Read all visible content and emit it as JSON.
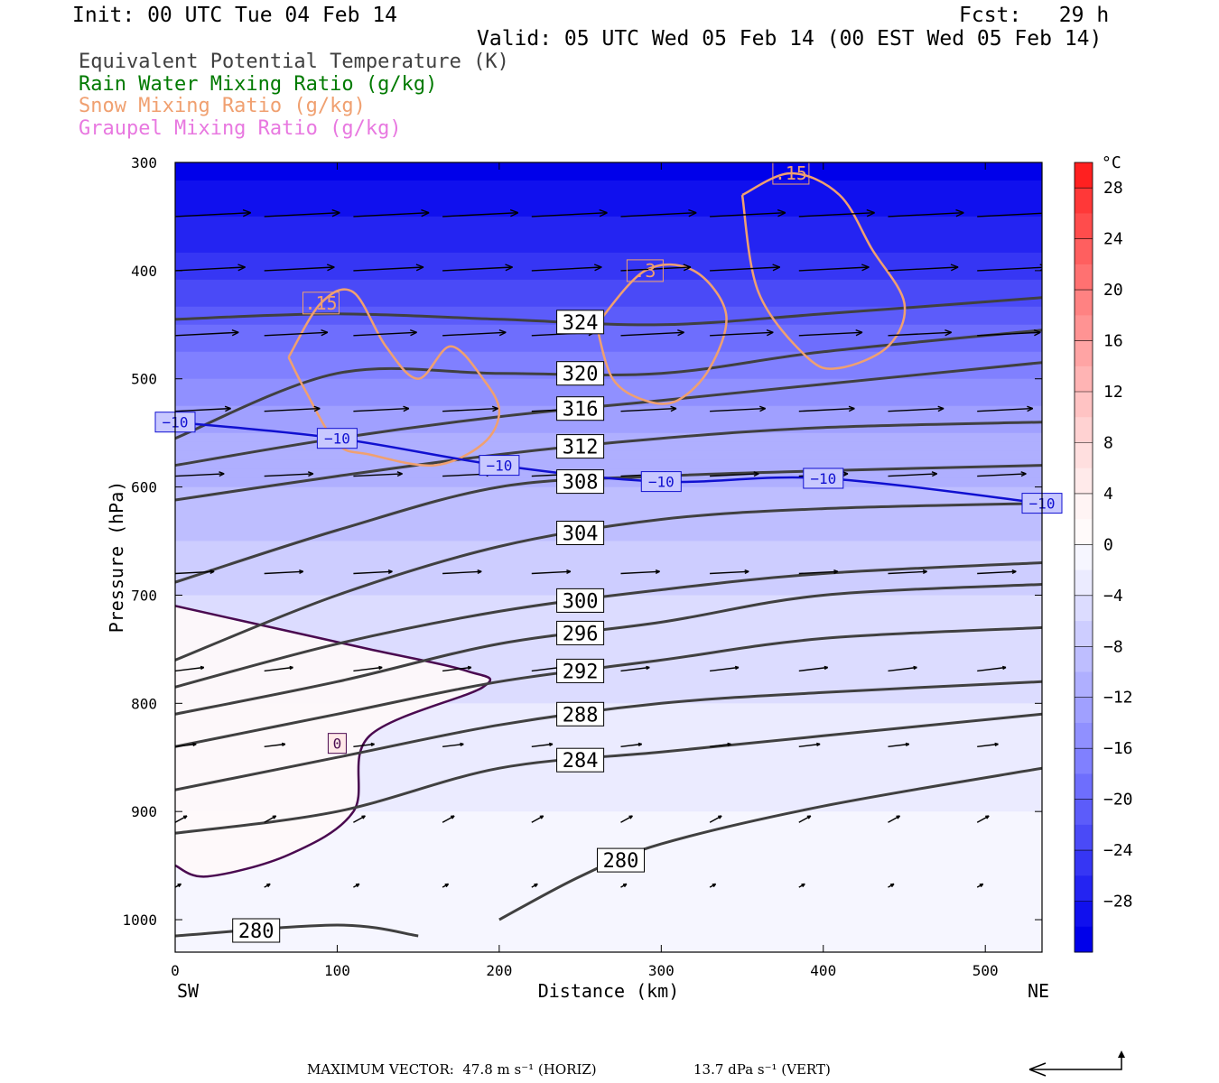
{
  "header": {
    "init": "Init: 00 UTC Tue 04 Feb 14",
    "fcst": "Fcst:   29 h",
    "valid": "Valid: 05 UTC Wed 05 Feb 14 (00 EST Wed 05 Feb 14)"
  },
  "fields": [
    {
      "label": "Equivalent Potential Temperature (K)",
      "color": "#404040"
    },
    {
      "label": "Rain Water Mixing Ratio (g/kg)",
      "color": "#007a00"
    },
    {
      "label": "Snow Mixing Ratio (g/kg)",
      "color": "#f0a070"
    },
    {
      "label": "Graupel Mixing Ratio (g/kg)",
      "color": "#e878e0"
    }
  ],
  "footer": {
    "horiz": "MAXIMUM VECTOR:  47.8 m s⁻¹ (HORIZ)",
    "vert": "13.7 dPa s⁻¹ (VERT)"
  },
  "chart_data": {
    "type": "heatmap",
    "xlabel": "Distance (km)",
    "ylabel": "Pressure (hPa)",
    "xlim": [
      0,
      535
    ],
    "ylim": [
      1030,
      300
    ],
    "x_ticks": [
      "0",
      "100",
      "200",
      "300",
      "400",
      "500"
    ],
    "y_ticks": [
      "300",
      "400",
      "500",
      "600",
      "700",
      "800",
      "900",
      "1000"
    ],
    "left_end_label": "SW",
    "right_end_label": "NE",
    "colorbar": {
      "unit": "°C",
      "tick_labels": [
        "28",
        "24",
        "20",
        "16",
        "12",
        "8",
        "4",
        "0",
        "−4",
        "−8",
        "−12",
        "−16",
        "−20",
        "−24",
        "−28"
      ],
      "bins": [
        {
          "from": 30,
          "to": 28,
          "color": "#ff2020"
        },
        {
          "from": 28,
          "to": 26,
          "color": "#ff3838"
        },
        {
          "from": 26,
          "to": 24,
          "color": "#ff4c4c"
        },
        {
          "from": 24,
          "to": 22,
          "color": "#ff5f5f"
        },
        {
          "from": 22,
          "to": 20,
          "color": "#ff7171"
        },
        {
          "from": 20,
          "to": 18,
          "color": "#ff8282"
        },
        {
          "from": 18,
          "to": 16,
          "color": "#ff9393"
        },
        {
          "from": 16,
          "to": 14,
          "color": "#ffa4a4"
        },
        {
          "from": 14,
          "to": 12,
          "color": "#ffb4b4"
        },
        {
          "from": 12,
          "to": 10,
          "color": "#ffc3c3"
        },
        {
          "from": 10,
          "to": 8,
          "color": "#ffd2d2"
        },
        {
          "from": 8,
          "to": 6,
          "color": "#ffdfdf"
        },
        {
          "from": 6,
          "to": 4,
          "color": "#ffeaea"
        },
        {
          "from": 4,
          "to": 2,
          "color": "#fff4f4"
        },
        {
          "from": 2,
          "to": 0,
          "color": "#fffafa"
        },
        {
          "from": 0,
          "to": -2,
          "color": "#f6f6ff"
        },
        {
          "from": -2,
          "to": -4,
          "color": "#ebebff"
        },
        {
          "from": -4,
          "to": -6,
          "color": "#dcdcff"
        },
        {
          "from": -6,
          "to": -8,
          "color": "#cdcdff"
        },
        {
          "from": -8,
          "to": -10,
          "color": "#bebeff"
        },
        {
          "from": -10,
          "to": -12,
          "color": "#afafff"
        },
        {
          "from": -12,
          "to": -14,
          "color": "#a0a0ff"
        },
        {
          "from": -14,
          "to": -16,
          "color": "#9090ff"
        },
        {
          "from": -16,
          "to": -18,
          "color": "#8080ff"
        },
        {
          "from": -18,
          "to": -20,
          "color": "#6e6efd"
        },
        {
          "from": -20,
          "to": -22,
          "color": "#5c5cfa"
        },
        {
          "from": -22,
          "to": -24,
          "color": "#4a4af7"
        },
        {
          "from": -24,
          "to": -26,
          "color": "#3636f4"
        },
        {
          "from": -26,
          "to": -28,
          "color": "#2424f2"
        },
        {
          "from": -28,
          "to": -30,
          "color": "#1010ee"
        },
        {
          "from": -30,
          "to": -32,
          "color": "#0000ea"
        }
      ]
    },
    "temperature_levels": [
      {
        "p": 300,
        "t": -31
      },
      {
        "p": 350,
        "t": -28
      },
      {
        "p": 400,
        "t": -25
      },
      {
        "p": 450,
        "t": -20
      },
      {
        "p": 500,
        "t": -16
      },
      {
        "p": 550,
        "t": -12
      },
      {
        "p": 600,
        "t": -10
      },
      {
        "p": 650,
        "t": -8
      },
      {
        "p": 700,
        "t": -6
      },
      {
        "p": 750,
        "t": -5
      },
      {
        "p": 800,
        "t": -4
      },
      {
        "p": 850,
        "t": -3
      },
      {
        "p": 900,
        "t": -2
      },
      {
        "p": 950,
        "t": -1
      },
      {
        "p": 1000,
        "t": -1
      },
      {
        "p": 1030,
        "t": -1
      }
    ],
    "warm_pocket": {
      "label": "0",
      "temperature": 2
    },
    "theta_e_contours": [
      {
        "label": "324",
        "x": [
          0,
          100,
          200,
          300,
          400,
          535
        ],
        "y": [
          445,
          440,
          445,
          450,
          440,
          425
        ]
      },
      {
        "label": "320",
        "x": [
          0,
          100,
          200,
          300,
          400,
          535
        ],
        "y": [
          555,
          495,
          495,
          495,
          475,
          455
        ]
      },
      {
        "label": "316",
        "x": [
          0,
          100,
          200,
          300,
          400,
          535
        ],
        "y": [
          580,
          555,
          535,
          520,
          505,
          485
        ]
      },
      {
        "label": "312",
        "x": [
          0,
          100,
          200,
          300,
          400,
          535
        ],
        "y": [
          612,
          590,
          570,
          555,
          545,
          540
        ]
      },
      {
        "label": "308",
        "x": [
          0,
          100,
          200,
          300,
          400,
          535
        ],
        "y": [
          688,
          640,
          600,
          590,
          585,
          580
        ]
      },
      {
        "label": "304",
        "x": [
          0,
          100,
          200,
          300,
          400,
          535
        ],
        "y": [
          760,
          700,
          655,
          630,
          620,
          615
        ]
      },
      {
        "label": "300",
        "x": [
          0,
          100,
          200,
          300,
          400,
          535
        ],
        "y": [
          785,
          745,
          715,
          695,
          680,
          670
        ]
      },
      {
        "label": "296",
        "x": [
          0,
          100,
          200,
          300,
          400,
          535
        ],
        "y": [
          810,
          780,
          745,
          725,
          700,
          690
        ]
      },
      {
        "label": "292",
        "x": [
          0,
          100,
          200,
          300,
          400,
          535
        ],
        "y": [
          840,
          810,
          780,
          760,
          740,
          730
        ]
      },
      {
        "label": "288",
        "x": [
          0,
          100,
          200,
          300,
          400,
          535
        ],
        "y": [
          880,
          850,
          820,
          800,
          790,
          780
        ]
      },
      {
        "label": "284",
        "x": [
          0,
          100,
          200,
          300,
          400,
          535
        ],
        "y": [
          920,
          900,
          860,
          845,
          830,
          810
        ]
      },
      {
        "label": "280",
        "x": [
          200,
          250,
          300,
          400,
          535
        ],
        "y": [
          1000,
          960,
          930,
          895,
          860
        ]
      },
      {
        "label": "280",
        "x": [
          0,
          100,
          150
        ],
        "y": [
          1015,
          1005,
          1015
        ]
      }
    ],
    "minus10_isotherm": {
      "label": "−10",
      "x": [
        0,
        100,
        200,
        300,
        400,
        535
      ],
      "y": [
        540,
        555,
        580,
        595,
        592,
        615
      ]
    },
    "snow_contours": [
      {
        "label": ".15",
        "x": [
          70,
          90,
          110,
          130,
          150,
          170,
          190,
          200,
          190,
          160,
          120,
          100,
          80,
          70
        ],
        "y": [
          480,
          430,
          420,
          470,
          500,
          470,
          500,
          530,
          560,
          580,
          570,
          560,
          510,
          480
        ]
      },
      {
        "label": ".3",
        "x": [
          260,
          290,
          320,
          340,
          330,
          310,
          290,
          270,
          260
        ],
        "y": [
          450,
          400,
          400,
          440,
          490,
          520,
          520,
          500,
          450
        ]
      },
      {
        "label": ".15",
        "x": [
          350,
          380,
          410,
          430,
          450,
          440,
          410,
          390,
          360,
          350
        ],
        "y": [
          330,
          310,
          330,
          380,
          430,
          470,
          490,
          480,
          420,
          330
        ]
      }
    ],
    "wind_vectors_note": "arrow field, max vector 47.8 m/s horizontal, 13.7 dPa/s vertical"
  }
}
